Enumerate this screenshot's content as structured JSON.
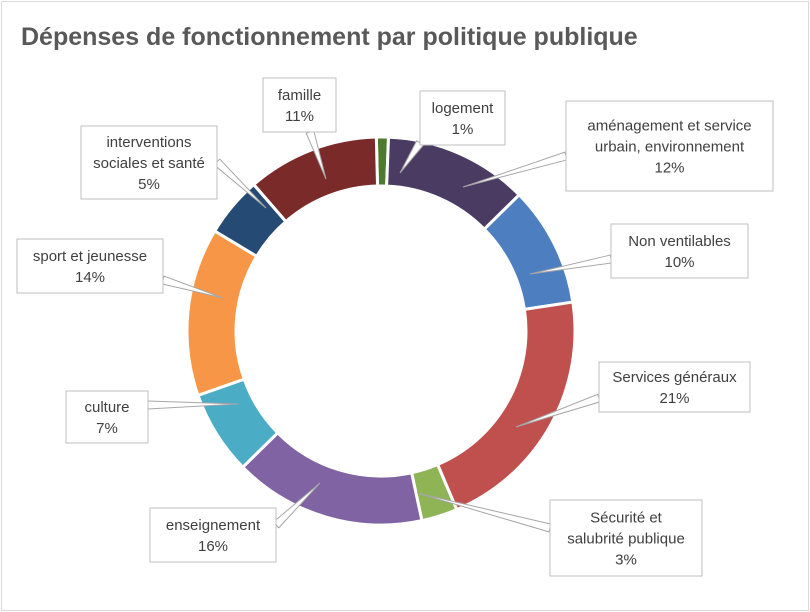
{
  "chart_data": {
    "type": "pie",
    "variant": "donut",
    "title": "Dépenses de fonctionnement par politique publique",
    "slices": [
      {
        "label": [
          "logement"
        ],
        "value_label": "1%",
        "value": 1,
        "color": "#4e7a2c"
      },
      {
        "label": [
          "aménagement et service",
          "urbain, environnement"
        ],
        "value_label": "12%",
        "value": 12,
        "color": "#4a3b63"
      },
      {
        "label": [
          "Non ventilables"
        ],
        "value_label": "10%",
        "value": 10,
        "color": "#4d7fc0"
      },
      {
        "label": [
          "Services généraux"
        ],
        "value_label": "21%",
        "value": 21,
        "color": "#c0504d"
      },
      {
        "label": [
          "Sécurité et",
          "salubrité publique"
        ],
        "value_label": "3%",
        "value": 3,
        "color": "#8fb456"
      },
      {
        "label": [
          "enseignement"
        ],
        "value_label": "16%",
        "value": 16,
        "color": "#7f63a3"
      },
      {
        "label": [
          "culture"
        ],
        "value_label": "7%",
        "value": 7,
        "color": "#4bacc6"
      },
      {
        "label": [
          "sport et jeunesse"
        ],
        "value_label": "14%",
        "value": 14,
        "color": "#f79646"
      },
      {
        "label": [
          "interventions",
          "sociales et santé"
        ],
        "value_label": "5%",
        "value": 5,
        "color": "#254b75"
      },
      {
        "label": [
          "famille"
        ],
        "value_label": "11%",
        "value": 11,
        "color": "#7b2a2a"
      }
    ]
  }
}
